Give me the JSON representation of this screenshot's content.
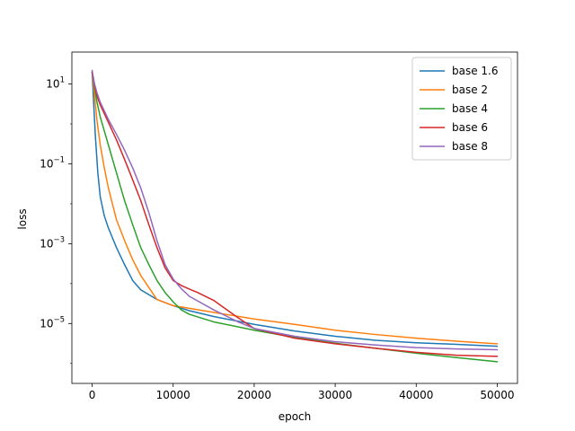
{
  "chart_data": {
    "type": "line",
    "xlabel": "epoch",
    "ylabel": "loss",
    "xlim": [
      -2500,
      52500
    ],
    "ylim": [
      3.16e-07,
      63.1
    ],
    "yscale": "log",
    "grid": false,
    "legend_position": "top-right",
    "xticks": [
      {
        "value": 0,
        "label": "0"
      },
      {
        "value": 10000,
        "label": "10000"
      },
      {
        "value": 20000,
        "label": "20000"
      },
      {
        "value": 30000,
        "label": "30000"
      },
      {
        "value": 40000,
        "label": "40000"
      },
      {
        "value": 50000,
        "label": "50000"
      }
    ],
    "yticks": [
      {
        "value": 10,
        "base": "10",
        "exp": "1"
      },
      {
        "value": 0.1,
        "base": "10",
        "exp": "−1"
      },
      {
        "value": 0.001,
        "base": "10",
        "exp": "−3"
      },
      {
        "value": 1e-05,
        "base": "10",
        "exp": "−5"
      }
    ],
    "series": [
      {
        "name": "base 1.6",
        "color": "#1f77b4",
        "x": [
          0,
          200,
          400,
          700,
          1000,
          1500,
          2000,
          3000,
          4000,
          5000,
          6000,
          8000,
          10000,
          12000,
          15000,
          20000,
          25000,
          30000,
          35000,
          40000,
          45000,
          50000
        ],
        "y": [
          20,
          3,
          0.5,
          0.06,
          0.015,
          0.005,
          0.0025,
          0.0008,
          0.0003,
          0.00012,
          7e-05,
          4e-05,
          2.8e-05,
          2.1e-05,
          1.5e-05,
          9.5e-06,
          6.5e-06,
          4.8e-06,
          3.8e-06,
          3.3e-06,
          3e-06,
          2.7e-06
        ]
      },
      {
        "name": "base 2",
        "color": "#ff7f0e",
        "x": [
          0,
          300,
          600,
          1000,
          1500,
          2000,
          3000,
          4000,
          5000,
          6000,
          7000,
          8000,
          10000,
          12000,
          15000,
          20000,
          25000,
          30000,
          35000,
          40000,
          45000,
          50000
        ],
        "y": [
          20,
          5,
          1.2,
          0.3,
          0.08,
          0.025,
          0.004,
          0.0012,
          0.0004,
          0.00016,
          8e-05,
          4e-05,
          2.8e-05,
          2.4e-05,
          1.9e-05,
          1.3e-05,
          9.5e-06,
          6.8e-06,
          5.3e-06,
          4.3e-06,
          3.6e-06,
          3.1e-06
        ]
      },
      {
        "name": "base 4",
        "color": "#2ca02c",
        "x": [
          0,
          300,
          600,
          1000,
          2000,
          3000,
          4000,
          5000,
          6000,
          7000,
          8000,
          9000,
          10000,
          11000,
          12000,
          15000,
          20000,
          25000,
          30000,
          35000,
          40000,
          45000,
          50000
        ],
        "y": [
          20,
          8,
          3.5,
          1.5,
          0.3,
          0.06,
          0.012,
          0.003,
          0.0008,
          0.0003,
          0.00012,
          6e-05,
          3.5e-05,
          2.2e-05,
          1.7e-05,
          1.1e-05,
          6.8e-06,
          4.5e-06,
          3.2e-06,
          2.4e-06,
          1.8e-06,
          1.4e-06,
          1.1e-06
        ]
      },
      {
        "name": "base 6",
        "color": "#d62728",
        "x": [
          0,
          300,
          600,
          1000,
          2000,
          3000,
          4000,
          5000,
          6000,
          7000,
          8000,
          9000,
          10000,
          11000,
          12000,
          13000,
          15000,
          18000,
          20000,
          25000,
          30000,
          35000,
          40000,
          45000,
          50000
        ],
        "y": [
          20,
          9,
          5,
          3,
          1.1,
          0.4,
          0.13,
          0.04,
          0.012,
          0.003,
          0.0008,
          0.00025,
          0.00012,
          9e-05,
          7.3e-05,
          6e-05,
          3.8e-05,
          1.4e-05,
          7.5e-06,
          4.3e-06,
          3.1e-06,
          2.4e-06,
          1.9e-06,
          1.6e-06,
          1.5e-06
        ]
      },
      {
        "name": "base 8",
        "color": "#9467bd",
        "x": [
          0,
          300,
          600,
          1000,
          2000,
          3000,
          4000,
          5000,
          6000,
          7000,
          8000,
          9000,
          10000,
          11000,
          12000,
          15000,
          18000,
          20000,
          25000,
          30000,
          35000,
          40000,
          45000,
          50000
        ],
        "y": [
          22,
          10,
          6,
          3.5,
          1.3,
          0.55,
          0.22,
          0.08,
          0.025,
          0.006,
          0.0012,
          0.0003,
          0.00013,
          7.5e-05,
          4.8e-05,
          2.2e-05,
          1.1e-05,
          7.5e-06,
          4.8e-06,
          3.5e-06,
          2.9e-06,
          2.5e-06,
          2.3e-06,
          2.2e-06
        ]
      }
    ]
  }
}
